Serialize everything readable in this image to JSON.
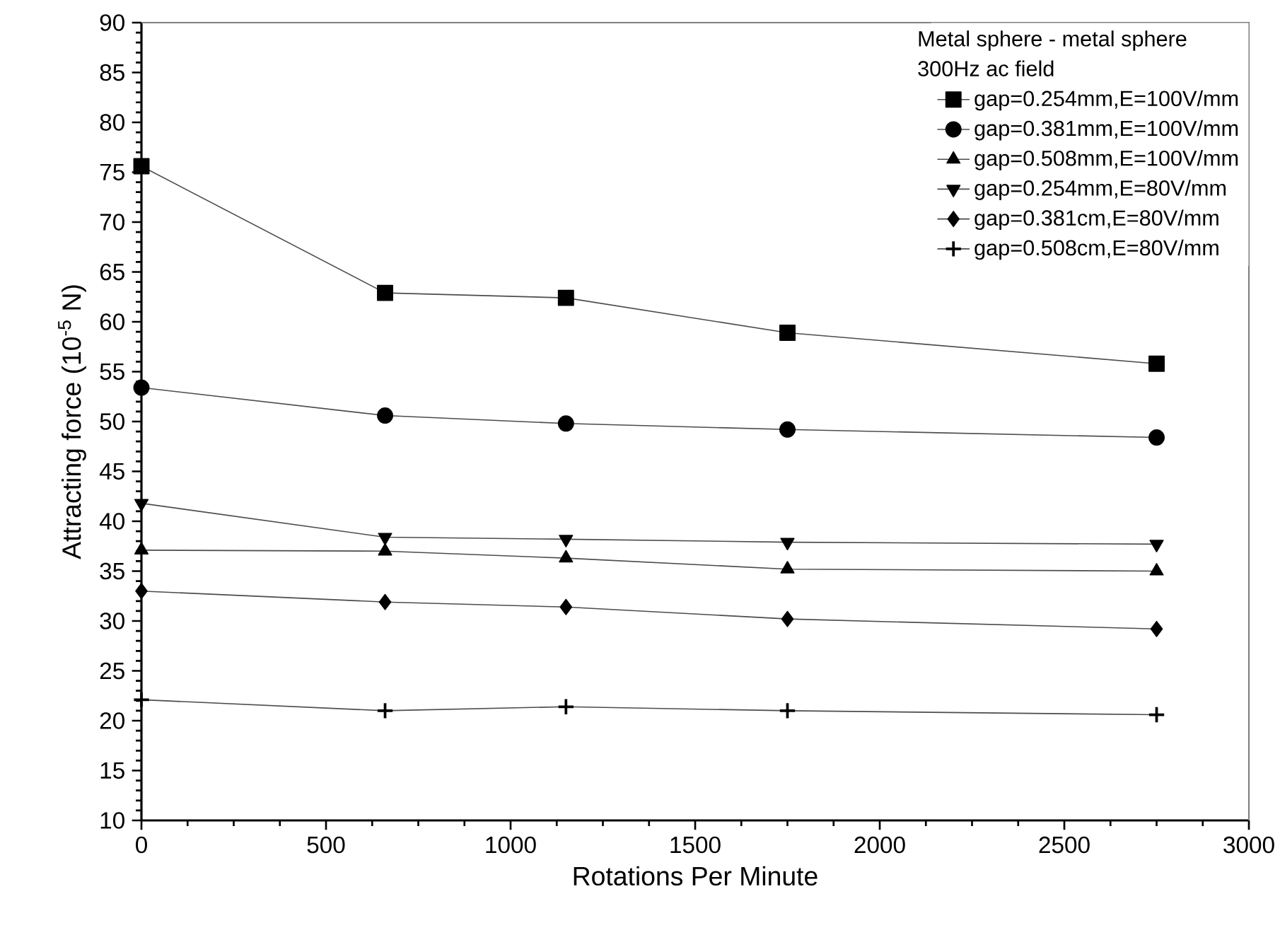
{
  "chart_data": {
    "type": "line",
    "xlabel": "Rotations Per Minute",
    "ylabel": "Attracting force (10$^{-5}$ N)",
    "legend_title": "Metal sphere - metal sphere",
    "annotations": [
      "300Hz ac field"
    ],
    "x": [
      0,
      660,
      1150,
      1750,
      2750
    ],
    "xlim": [
      0,
      3000
    ],
    "xticks": [
      0,
      500,
      1000,
      1500,
      2000,
      2500,
      3000
    ],
    "ylim": [
      10,
      90
    ],
    "yticks": [
      10,
      15,
      20,
      25,
      30,
      35,
      40,
      45,
      50,
      55,
      60,
      65,
      70,
      75,
      80,
      85,
      90
    ],
    "legend": "top right",
    "grid": false,
    "line_style": "solid",
    "series": [
      {
        "name": "gap=0.254mm,E=100V/mm",
        "color": "#000000",
        "marker": "square",
        "values": [
          75.6,
          62.9,
          62.4,
          58.9,
          55.8
        ]
      },
      {
        "name": "gap=0.381mm,E=100V/mm",
        "color": "#000000",
        "marker": "circle",
        "values": [
          53.4,
          50.6,
          49.8,
          49.2,
          48.4
        ]
      },
      {
        "name": "gap=0.508mm,E=100V/mm",
        "color": "#000000",
        "marker": "triangle",
        "values": [
          37.1,
          37.0,
          36.3,
          35.2,
          35.0
        ]
      },
      {
        "name": "gap=0.254mm,E=80V/mm",
        "color": "#000000",
        "marker": "triangle-down",
        "values": [
          41.8,
          38.4,
          38.2,
          37.9,
          37.7
        ]
      },
      {
        "name": "gap=0.381cm,E=80V/mm",
        "color": "#000000",
        "marker": "diamond",
        "values": [
          33.0,
          31.9,
          31.4,
          30.2,
          29.2
        ]
      },
      {
        "name": "gap=0.508cm,E=80V/mm",
        "color": "#000000",
        "marker": "cross",
        "values": [
          22.1,
          21.0,
          21.4,
          21.0,
          20.6
        ]
      }
    ]
  }
}
